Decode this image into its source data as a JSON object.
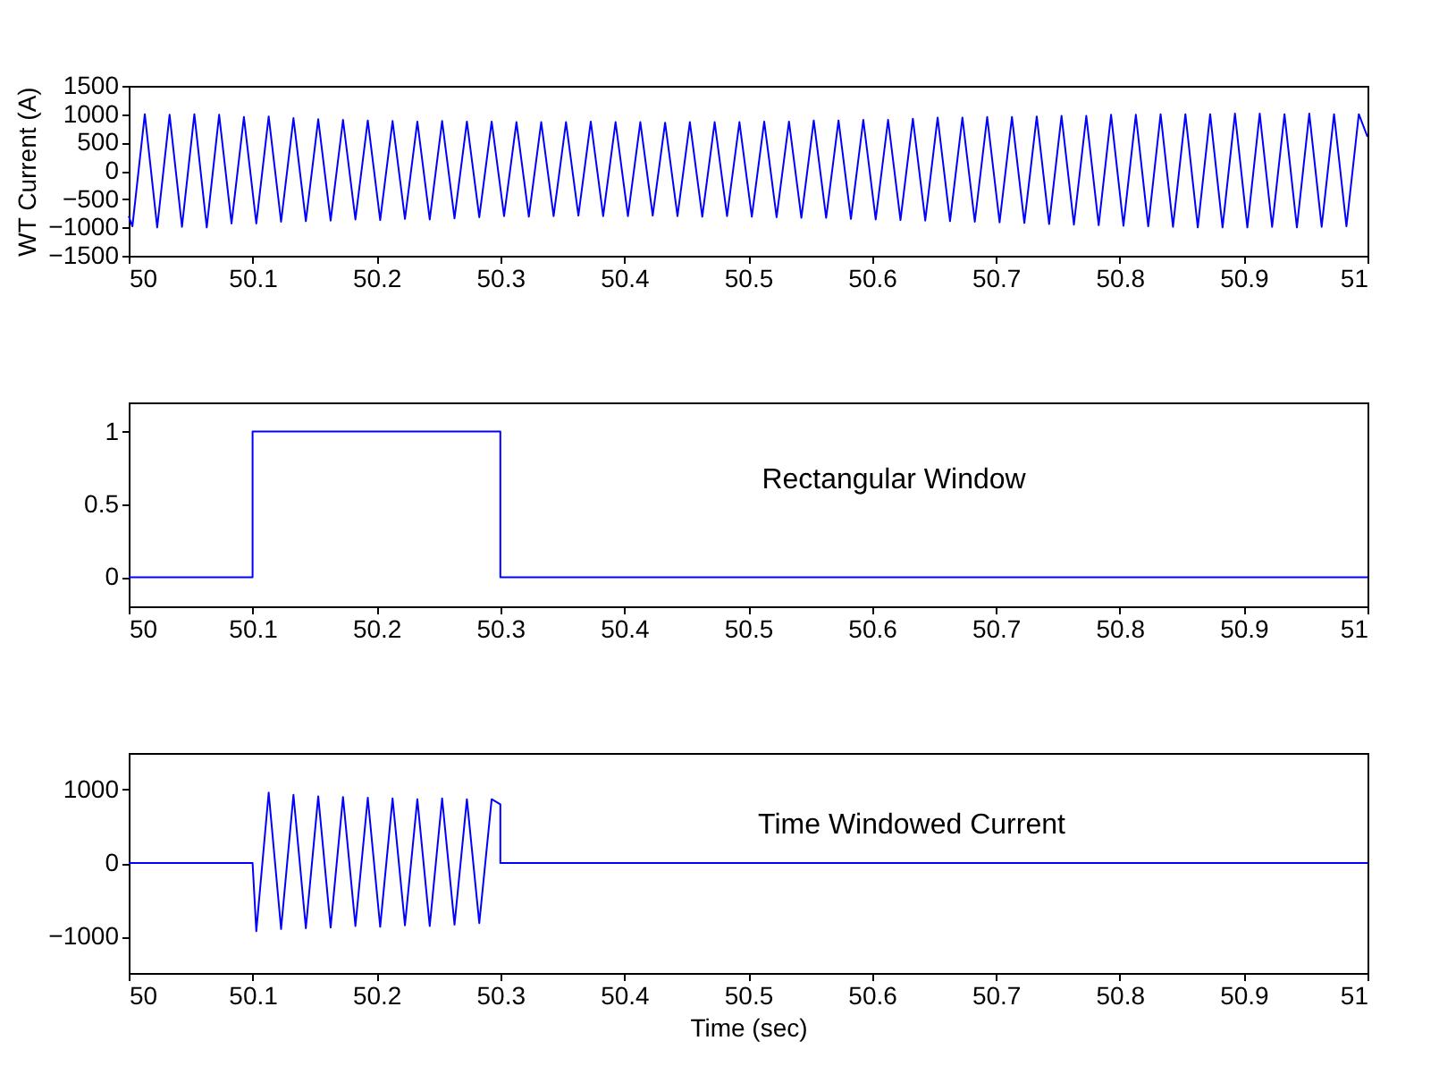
{
  "chart_data": [
    {
      "type": "line",
      "ylabel": "WT Current (A)",
      "xlim": [
        50,
        51
      ],
      "xticks": [
        50,
        50.1,
        50.2,
        50.3,
        50.4,
        50.5,
        50.6,
        50.7,
        50.8,
        50.9,
        51
      ],
      "ylim": [
        -1500,
        1500
      ],
      "yticks": [
        -1500,
        -1000,
        -500,
        0,
        500,
        1000,
        1500
      ],
      "grid": false,
      "series": [
        {
          "color": "#0000ff",
          "x": [
            50,
            50.003,
            50.013,
            50.023,
            50.033,
            50.043,
            50.053,
            50.063,
            50.073,
            50.083,
            50.093,
            50.103,
            50.113,
            50.123,
            50.133,
            50.143,
            50.153,
            50.163,
            50.173,
            50.183,
            50.193,
            50.203,
            50.213,
            50.223,
            50.233,
            50.243,
            50.253,
            50.263,
            50.273,
            50.283,
            50.293,
            50.303,
            50.313,
            50.323,
            50.333,
            50.343,
            50.353,
            50.363,
            50.373,
            50.383,
            50.393,
            50.403,
            50.413,
            50.423,
            50.433,
            50.443,
            50.453,
            50.463,
            50.473,
            50.483,
            50.493,
            50.503,
            50.513,
            50.523,
            50.533,
            50.543,
            50.553,
            50.563,
            50.573,
            50.583,
            50.593,
            50.603,
            50.613,
            50.623,
            50.633,
            50.643,
            50.653,
            50.663,
            50.673,
            50.683,
            50.693,
            50.703,
            50.713,
            50.723,
            50.733,
            50.743,
            50.753,
            50.763,
            50.773,
            50.783,
            50.793,
            50.803,
            50.813,
            50.823,
            50.833,
            50.843,
            50.853,
            50.863,
            50.873,
            50.883,
            50.893,
            50.903,
            50.913,
            50.923,
            50.933,
            50.943,
            50.953,
            50.963,
            50.973,
            50.983,
            50.993,
            51
          ],
          "values": [
            -800,
            -980,
            1000,
            -1000,
            990,
            -990,
            1000,
            -1000,
            990,
            -930,
            950,
            -930,
            960,
            -900,
            930,
            -890,
            910,
            -880,
            900,
            -860,
            890,
            -870,
            880,
            -850,
            870,
            -860,
            880,
            -840,
            870,
            -820,
            870,
            -800,
            860,
            -810,
            860,
            -800,
            860,
            -790,
            870,
            -800,
            860,
            -800,
            860,
            -790,
            850,
            -800,
            860,
            -810,
            860,
            -800,
            860,
            -810,
            870,
            -820,
            870,
            -830,
            890,
            -830,
            890,
            -850,
            900,
            -860,
            900,
            -870,
            920,
            -880,
            940,
            -890,
            940,
            -900,
            950,
            -910,
            950,
            -920,
            960,
            -940,
            970,
            -950,
            970,
            -960,
            990,
            -970,
            990,
            -980,
            1000,
            -990,
            1000,
            -1000,
            1000,
            -1000,
            1010,
            -1000,
            1010,
            -990,
            1000,
            -1000,
            1010,
            -990,
            1000,
            -980,
            1000,
            600
          ]
        }
      ]
    },
    {
      "type": "line",
      "xlim": [
        50,
        51
      ],
      "xticks": [
        50,
        50.1,
        50.2,
        50.3,
        50.4,
        50.5,
        50.6,
        50.7,
        50.8,
        50.9,
        51
      ],
      "ylim": [
        -0.2,
        1.2
      ],
      "yticks": [
        0,
        0.5,
        1
      ],
      "grid": false,
      "annotations": [
        "Rectangular Window"
      ],
      "series": [
        {
          "color": "#0000ff",
          "x": [
            50,
            50.1,
            50.1,
            50.3,
            50.3,
            51
          ],
          "values": [
            0,
            0,
            1,
            1,
            0,
            0
          ]
        }
      ]
    },
    {
      "type": "line",
      "xlabel": "Time (sec)",
      "xlim": [
        50,
        51
      ],
      "xticks": [
        50,
        50.1,
        50.2,
        50.3,
        50.4,
        50.5,
        50.6,
        50.7,
        50.8,
        50.9,
        51
      ],
      "ylim": [
        -1500,
        1500
      ],
      "yticks": [
        -1000,
        0,
        1000
      ],
      "grid": false,
      "annotations": [
        "Time Windowed Current"
      ],
      "series": [
        {
          "color": "#0000ff",
          "x": [
            50,
            50.1,
            50.103,
            50.113,
            50.123,
            50.133,
            50.143,
            50.153,
            50.163,
            50.173,
            50.183,
            50.193,
            50.203,
            50.213,
            50.223,
            50.233,
            50.243,
            50.253,
            50.263,
            50.273,
            50.283,
            50.293,
            50.3,
            50.3,
            51
          ],
          "values": [
            0,
            0,
            -930,
            960,
            -900,
            930,
            -890,
            910,
            -880,
            900,
            -860,
            890,
            -870,
            880,
            -850,
            870,
            -860,
            880,
            -840,
            870,
            -820,
            870,
            800,
            0,
            0
          ]
        }
      ]
    }
  ]
}
